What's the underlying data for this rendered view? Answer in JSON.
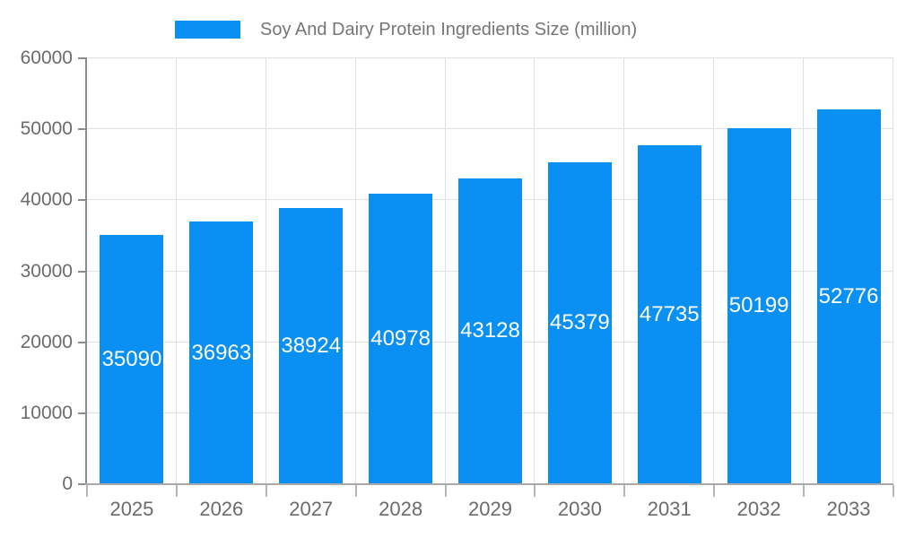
{
  "chart_data": {
    "type": "bar",
    "title": "Soy And Dairy Protein Ingredients Size (million)",
    "categories": [
      "2025",
      "2026",
      "2027",
      "2028",
      "2029",
      "2030",
      "2031",
      "2032",
      "2033"
    ],
    "values": [
      35090,
      36963,
      38924,
      40978,
      43128,
      45379,
      47735,
      50199,
      52776
    ],
    "xlabel": "",
    "ylabel": "",
    "ylim": [
      0,
      60000
    ],
    "ytick_step": 10000,
    "ytick_labels": [
      "0",
      "10000",
      "20000",
      "30000",
      "40000",
      "50000",
      "60000"
    ],
    "grid": true,
    "legend_position": "top",
    "bar_labels_position": "inside-center",
    "colors": {
      "bar": "#0a90f2",
      "bar_label": "#ffffff",
      "axis_text": "#6b6b6b",
      "legend_text": "#757575",
      "gridline": "#e0e0e0",
      "axis_line_y": "#8c8c8c",
      "axis_line_x": "#a9a9a9",
      "tick": "#b5b5b5",
      "background": "#ffffff"
    }
  }
}
